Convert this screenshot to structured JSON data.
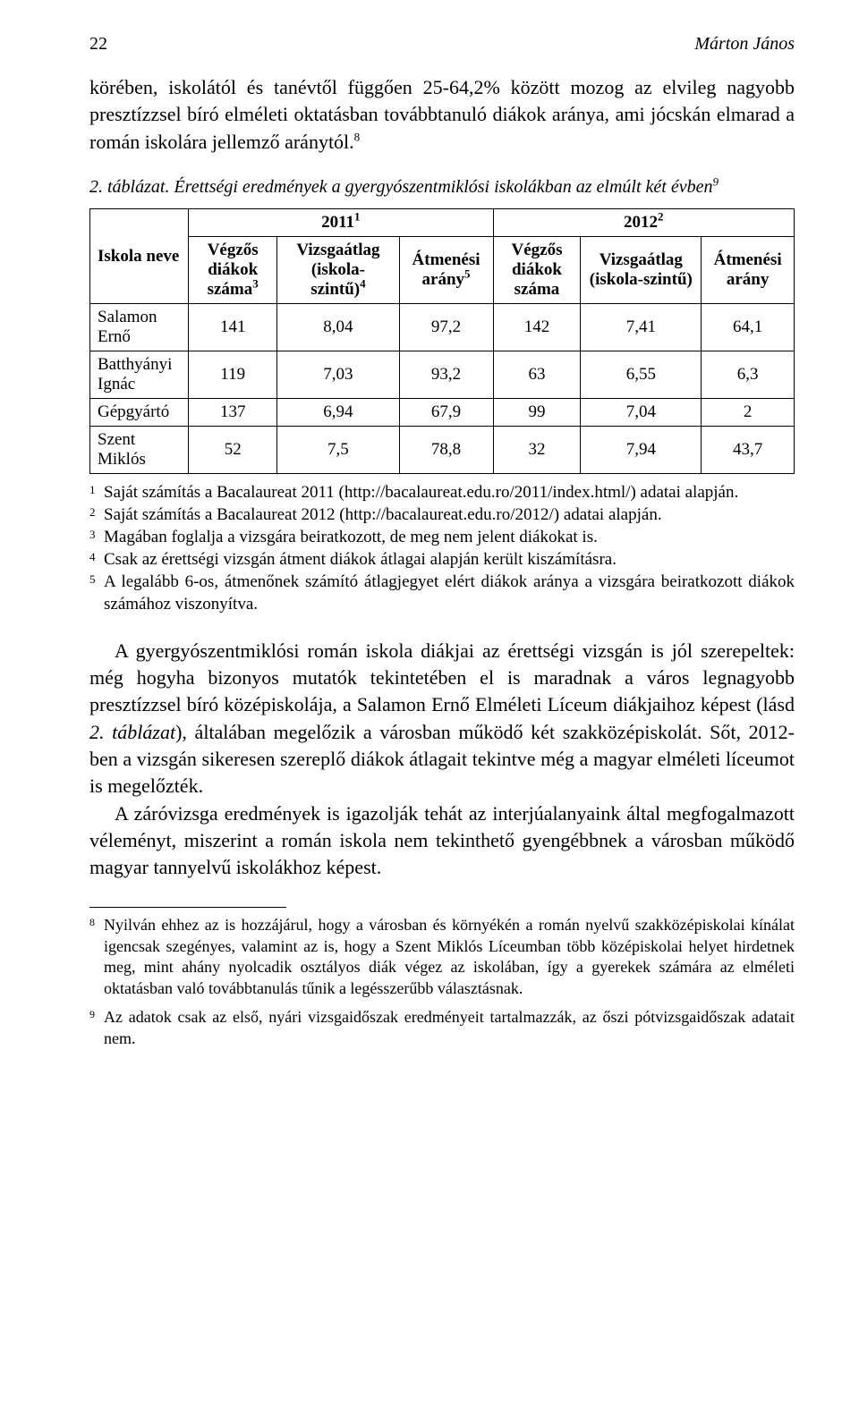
{
  "header": {
    "page_number": "22",
    "author": "Márton János"
  },
  "intro_paragraph": "körében, iskolától és tanévtől függően 25-64,2% között mozog az elvileg nagyobb presztízzsel bíró elméleti oktatásban továbbtanuló diákok aránya, ami jócskán elmarad a román iskolára jellemző aránytól.",
  "intro_sup": "8",
  "table": {
    "caption_label": "2. táblázat.",
    "caption_text": "Érettségi eredmények a gyergyószentmiklósi iskolákban az elmúlt két évben",
    "caption_sup": "9",
    "header_row1": {
      "school_col": "Iskola neve",
      "group_2011": "2011",
      "group_2011_sup": "1",
      "group_2012": "2012",
      "group_2012_sup": "2"
    },
    "header_row2": {
      "c1": "Végzős diákok száma",
      "c1_sup": "3",
      "c2": "Vizsgaátlag (iskola-szintű)",
      "c2_sup": "4",
      "c3": "Átmenési arány",
      "c3_sup": "5",
      "c4": "Végzős diákok száma",
      "c5": "Vizsgaátlag (iskola-szintű)",
      "c6": "Átmenési arány"
    },
    "rows": [
      {
        "name": "Salamon Ernő",
        "v": [
          "141",
          "8,04",
          "97,2",
          "142",
          "7,41",
          "64,1"
        ]
      },
      {
        "name": "Batthyányi Ignác",
        "v": [
          "119",
          "7,03",
          "93,2",
          "63",
          "6,55",
          "6,3"
        ]
      },
      {
        "name": "Gépgyártó",
        "v": [
          "137",
          "6,94",
          "67,9",
          "99",
          "7,04",
          "2"
        ]
      },
      {
        "name": "Szent Miklós",
        "v": [
          "52",
          "7,5",
          "78,8",
          "32",
          "7,94",
          "43,7"
        ]
      }
    ]
  },
  "table_footnotes": [
    {
      "marker": "1",
      "text": "Saját számítás a Bacalaureat 2011 (http://bacalaureat.edu.ro/2011/index.html/) adatai alapján."
    },
    {
      "marker": "2",
      "text": "Saját számítás a Bacalaureat 2012 (http://bacalaureat.edu.ro/2012/) adatai alapján."
    },
    {
      "marker": "3",
      "text": "Magában foglalja a vizsgára beiratkozott, de meg nem jelent diákokat is."
    },
    {
      "marker": "4",
      "text": "Csak az érettségi vizsgán átment diákok átlagai alapján került kiszámításra."
    },
    {
      "marker": "5",
      "text": "A legalább 6-os, átmenőnek számító átlagjegyet elért diákok aránya a vizsgára beiratkozott diákok számához viszonyítva."
    }
  ],
  "body_paragraph_1_pre": "A gyergyószentmiklósi román iskola diákjai az érettségi vizsgán is jól szerepeltek: még hogyha bizonyos mutatók tekintetében el is maradnak a város legnagyobb presztízzsel bíró középiskolája, a Salamon Ernő Elméleti Líceum diákjaihoz képest (lásd ",
  "body_paragraph_1_emph": "2. táblázat",
  "body_paragraph_1_post": "), általában megelőzik a városban működő két szakközépiskolát. Sőt, 2012-ben a vizsgán sikeresen szereplő diákok átlagait tekintve még a magyar elméleti líceumot is megelőzték.",
  "body_paragraph_2": "A záróvizsga eredmények is igazolják tehát az interjúalanyaink által megfogalmazott véleményt, miszerint a román iskola nem tekinthető gyengébbnek a városban működő magyar tannyelvű iskolákhoz képest.",
  "page_footnotes": [
    {
      "marker": "8",
      "text": "Nyilván ehhez az is hozzájárul, hogy a városban és környékén a román nyelvű szakközépiskolai kínálat igencsak szegényes, valamint az is, hogy a Szent Miklós Líceumban több középiskolai helyet hirdetnek meg, mint ahány nyolcadik osztályos diák végez az iskolában, így a gyerekek számára az elméleti oktatásban való továbbtanulás tűnik a legésszerűbb választásnak."
    },
    {
      "marker": "9",
      "text": "Az adatok csak az első, nyári vizsgaidőszak eredményeit tartalmazzák, az őszi pótvizsgaidőszak adatait nem."
    }
  ],
  "colors": {
    "background": "#ffffff",
    "text": "#000000",
    "table_border": "#000000"
  },
  "typography": {
    "body_font": "Times New Roman",
    "body_size_pt": 11,
    "caption_style": "italic"
  }
}
